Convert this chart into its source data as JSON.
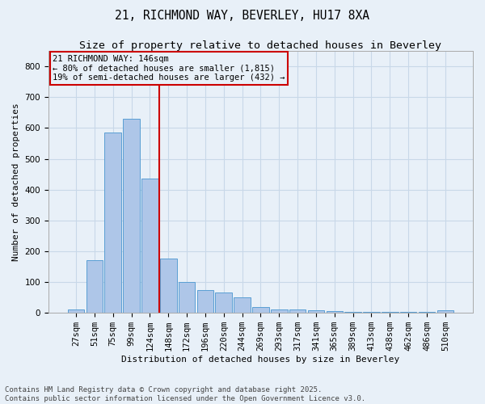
{
  "title_line1": "21, RICHMOND WAY, BEVERLEY, HU17 8XA",
  "title_line2": "Size of property relative to detached houses in Beverley",
  "xlabel": "Distribution of detached houses by size in Beverley",
  "ylabel": "Number of detached properties",
  "categories": [
    "27sqm",
    "51sqm",
    "75sqm",
    "99sqm",
    "124sqm",
    "148sqm",
    "172sqm",
    "196sqm",
    "220sqm",
    "244sqm",
    "269sqm",
    "293sqm",
    "317sqm",
    "341sqm",
    "365sqm",
    "389sqm",
    "413sqm",
    "438sqm",
    "462sqm",
    "486sqm",
    "510sqm"
  ],
  "values": [
    12,
    170,
    585,
    630,
    435,
    175,
    100,
    75,
    65,
    50,
    18,
    12,
    10,
    8,
    5,
    4,
    4,
    3,
    2,
    2,
    8
  ],
  "bar_color": "#aec6e8",
  "bar_edge_color": "#5a9fd4",
  "vline_color": "#cc0000",
  "vline_index": 5,
  "annotation_text": "21 RICHMOND WAY: 146sqm\n← 80% of detached houses are smaller (1,815)\n19% of semi-detached houses are larger (432) →",
  "annotation_box_color": "#cc0000",
  "ylim": [
    0,
    850
  ],
  "yticks": [
    0,
    100,
    200,
    300,
    400,
    500,
    600,
    700,
    800
  ],
  "grid_color": "#c8d8e8",
  "bg_color": "#e8f0f8",
  "footnote": "Contains HM Land Registry data © Crown copyright and database right 2025.\nContains public sector information licensed under the Open Government Licence v3.0.",
  "title_fontsize": 10.5,
  "subtitle_fontsize": 9.5,
  "axis_label_fontsize": 8,
  "tick_fontsize": 7.5,
  "annotation_fontsize": 7.5,
  "footnote_fontsize": 6.5
}
